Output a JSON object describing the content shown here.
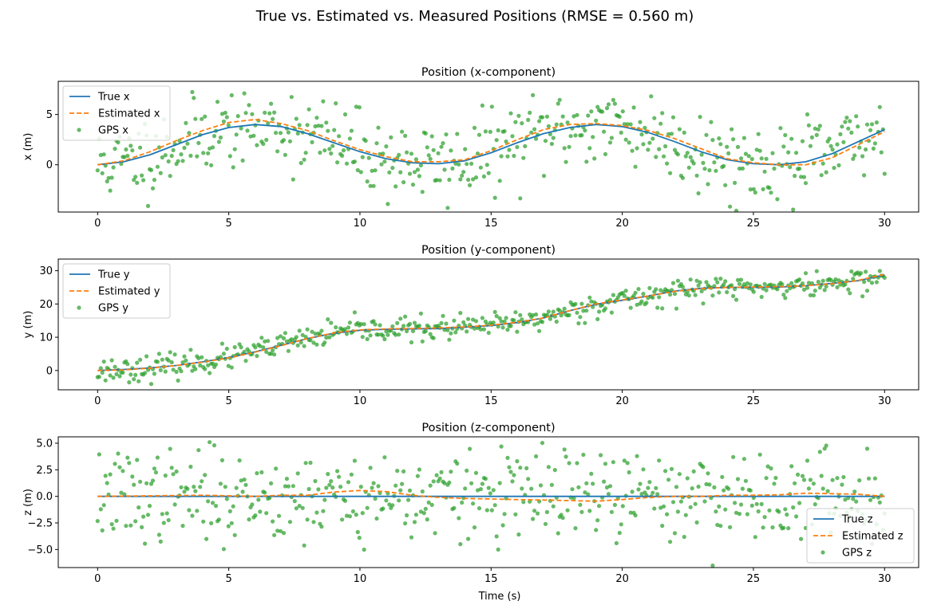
{
  "figure": {
    "suptitle": "True vs. Estimated vs. Measured Positions (RMSE = 0.560 m)",
    "xlabel": "Time (s)"
  },
  "colors": {
    "true": "#1f77b4",
    "estimated": "#ff7f0e",
    "gps": "#2ca02c"
  },
  "chart_data": [
    {
      "type": "line",
      "title": "Position (x-component)",
      "ylabel": "x (m)",
      "xlabel": "",
      "xlim": [
        -1.5,
        31.3
      ],
      "ylim": [
        -4.7,
        8.3
      ],
      "xticks": [
        0,
        5,
        10,
        15,
        20,
        25,
        30
      ],
      "yticks": [
        0,
        5
      ],
      "legend": "top-left",
      "series": [
        {
          "name": "True x",
          "style": "solid",
          "x": [
            0,
            1,
            2,
            3,
            4,
            5,
            6,
            7,
            8,
            9,
            10,
            11,
            12,
            13,
            14,
            15,
            16,
            17,
            18,
            19,
            20,
            21,
            22,
            23,
            24,
            25,
            26,
            27,
            28,
            29,
            30
          ],
          "y": [
            0,
            0.3,
            1.0,
            2.0,
            3.0,
            3.7,
            4.0,
            3.8,
            3.1,
            2.2,
            1.3,
            0.6,
            0.2,
            0.1,
            0.4,
            1.2,
            2.2,
            3.1,
            3.7,
            4.0,
            3.8,
            3.2,
            2.3,
            1.3,
            0.5,
            0.1,
            0.0,
            0.3,
            1.1,
            2.3,
            3.5
          ]
        },
        {
          "name": "Estimated x",
          "style": "dashed",
          "x": [
            0,
            1,
            2,
            3,
            4,
            5,
            6,
            7,
            8,
            9,
            10,
            11,
            12,
            13,
            14,
            15,
            16,
            17,
            18,
            19,
            20,
            21,
            22,
            23,
            24,
            25,
            26,
            27,
            28,
            29,
            30
          ],
          "y": [
            0,
            0.4,
            1.3,
            2.4,
            3.4,
            4.2,
            4.5,
            4.1,
            3.4,
            2.4,
            1.5,
            0.8,
            0.3,
            0.3,
            0.5,
            1.4,
            2.5,
            3.5,
            4.0,
            4.1,
            3.9,
            3.4,
            2.6,
            1.6,
            0.6,
            0.2,
            0.0,
            0.0,
            0.7,
            2.0,
            3.3
          ]
        },
        {
          "name": "GPS x",
          "style": "scatter",
          "noise": 2.0,
          "seed": 11
        }
      ]
    },
    {
      "type": "line",
      "title": "Position (y-component)",
      "ylabel": "y (m)",
      "xlabel": "",
      "xlim": [
        -1.5,
        31.3
      ],
      "ylim": [
        -5.8,
        33.5
      ],
      "xticks": [
        0,
        5,
        10,
        15,
        20,
        25,
        30
      ],
      "yticks": [
        0,
        10,
        20,
        30
      ],
      "legend": "top-left",
      "series": [
        {
          "name": "True y",
          "style": "solid",
          "x": [
            0,
            1,
            2,
            3,
            4,
            5,
            6,
            7,
            8,
            9,
            10,
            11,
            12,
            13,
            14,
            15,
            16,
            17,
            18,
            19,
            20,
            21,
            22,
            23,
            24,
            25,
            26,
            27,
            28,
            29,
            30
          ],
          "y": [
            0,
            0.3,
            0.8,
            1.5,
            2.6,
            3.9,
            5.6,
            7.6,
            9.6,
            11.2,
            12.1,
            12.4,
            12.5,
            12.6,
            13.0,
            13.5,
            14.4,
            15.8,
            18.0,
            19.9,
            21.1,
            22.4,
            23.9,
            24.7,
            25.0,
            25.0,
            25.1,
            25.5,
            26.2,
            27.0,
            28.7
          ]
        },
        {
          "name": "Estimated y",
          "style": "dashed",
          "x": [
            0,
            1,
            2,
            3,
            4,
            5,
            6,
            7,
            8,
            9,
            10,
            11,
            12,
            13,
            14,
            15,
            16,
            17,
            18,
            19,
            20,
            21,
            22,
            23,
            24,
            25,
            26,
            27,
            28,
            29,
            30
          ],
          "y": [
            0,
            0.2,
            0.7,
            1.5,
            2.5,
            3.8,
            5.5,
            7.5,
            9.6,
            11.3,
            12.2,
            12.5,
            12.6,
            12.8,
            13.1,
            13.6,
            14.5,
            15.8,
            18.0,
            20.0,
            21.2,
            22.4,
            23.8,
            24.6,
            25.0,
            25.1,
            25.2,
            25.5,
            26.1,
            27.1,
            28.9
          ]
        },
        {
          "name": "GPS y",
          "style": "scatter",
          "noise": 1.8,
          "seed": 23
        }
      ]
    },
    {
      "type": "line",
      "title": "Position (z-component)",
      "ylabel": "z (m)",
      "xlabel": "Time (s)",
      "xlim": [
        -1.5,
        31.3
      ],
      "ylim": [
        -6.7,
        5.6
      ],
      "xticks": [
        0,
        5,
        10,
        15,
        20,
        25,
        30
      ],
      "yticks": [
        -5.0,
        -2.5,
        0.0,
        2.5,
        5.0
      ],
      "legend": "bottom-right",
      "series": [
        {
          "name": "True z",
          "style": "solid",
          "x": [
            0,
            30
          ],
          "y": [
            0,
            0
          ]
        },
        {
          "name": "Estimated z",
          "style": "dashed",
          "x": [
            0,
            2,
            4,
            6,
            7,
            8,
            9,
            10,
            11,
            12,
            13,
            14,
            15,
            16,
            17,
            18,
            19,
            20,
            21,
            22,
            23,
            24,
            25,
            26,
            27,
            28,
            29,
            30
          ],
          "y": [
            0,
            0.05,
            0.1,
            0.0,
            0.1,
            0.1,
            0.4,
            0.55,
            0.45,
            0.1,
            -0.1,
            -0.2,
            -0.25,
            -0.3,
            -0.35,
            -0.4,
            -0.45,
            -0.3,
            -0.1,
            0.0,
            0.0,
            0.1,
            0.1,
            0.15,
            0.3,
            0.25,
            0.2,
            0.0
          ]
        },
        {
          "name": "GPS z",
          "style": "scatter",
          "noise": 2.1,
          "seed": 37
        }
      ]
    }
  ]
}
